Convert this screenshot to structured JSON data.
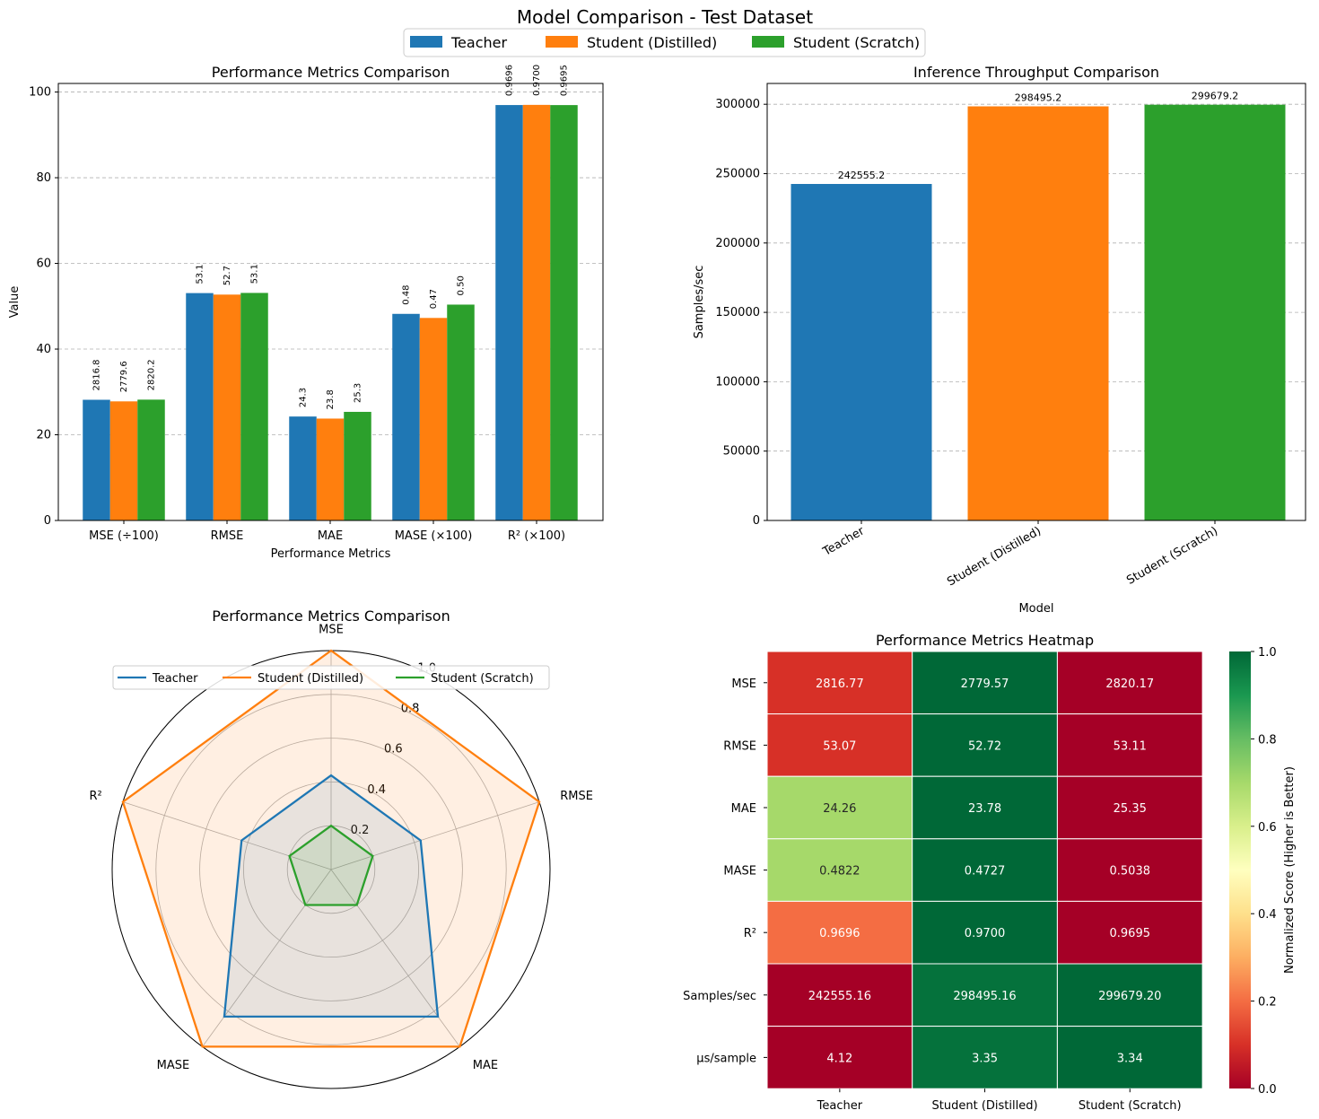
{
  "figure": {
    "title": "Model Comparison - Test Dataset",
    "legend": [
      "Teacher",
      "Student (Distilled)",
      "Student (Scratch)"
    ]
  },
  "colors": {
    "teacher": "#1f77b4",
    "distilled": "#ff7f0e",
    "scratch": "#2ca02c"
  },
  "chart_data": [
    {
      "type": "bar",
      "title": "Performance Metrics Comparison",
      "xlabel": "Performance Metrics",
      "ylabel": "Value",
      "categories": [
        "MSE (÷100)",
        "RMSE",
        "MAE",
        "MASE (×100)",
        "R² (×100)"
      ],
      "ylim": [
        0,
        102
      ],
      "yticks": [
        0,
        20,
        40,
        60,
        80,
        100
      ],
      "grid": "y",
      "series": [
        {
          "name": "Teacher",
          "values": [
            28.168,
            53.07,
            24.26,
            48.22,
            96.96
          ],
          "labels": [
            "2816.8",
            "53.1",
            "24.3",
            "0.48",
            "0.9696"
          ]
        },
        {
          "name": "Student (Distilled)",
          "values": [
            27.796,
            52.72,
            23.78,
            47.27,
            97.0
          ],
          "labels": [
            "2779.6",
            "52.7",
            "23.8",
            "0.47",
            "0.9700"
          ]
        },
        {
          "name": "Student (Scratch)",
          "values": [
            28.202,
            53.11,
            25.35,
            50.38,
            96.95
          ],
          "labels": [
            "2820.2",
            "53.1",
            "25.3",
            "0.50",
            "0.9695"
          ]
        }
      ]
    },
    {
      "type": "bar",
      "title": "Inference Throughput Comparison",
      "xlabel": "Model",
      "ylabel": "Samples/sec",
      "categories": [
        "Teacher",
        "Student (Distilled)",
        "Student (Scratch)"
      ],
      "values": [
        242555.2,
        298495.2,
        299679.2
      ],
      "labels": [
        "242555.2",
        "298495.2",
        "299679.2"
      ],
      "ylim": [
        0,
        315000
      ],
      "yticks": [
        0,
        50000,
        100000,
        150000,
        200000,
        250000,
        300000
      ],
      "grid": "y"
    },
    {
      "type": "radar",
      "title": "Performance Metrics Comparison",
      "axes": [
        "MSE",
        "RMSE",
        "MAE",
        "MASE",
        "R²"
      ],
      "rlim": [
        0,
        1.0
      ],
      "rticks": [
        "0.2",
        "0.4",
        "0.6",
        "0.8",
        "1.0"
      ],
      "legend_position": "top",
      "series": [
        {
          "name": "Teacher",
          "values": [
            0.43,
            0.43,
            0.83,
            0.83,
            0.43
          ]
        },
        {
          "name": "Student (Distilled)",
          "values": [
            1.0,
            1.0,
            1.0,
            1.0,
            1.0
          ]
        },
        {
          "name": "Student (Scratch)",
          "values": [
            0.2,
            0.2,
            0.2,
            0.2,
            0.2
          ]
        }
      ]
    },
    {
      "type": "heatmap",
      "title": "Performance Metrics Heatmap",
      "rows": [
        "MSE",
        "RMSE",
        "MAE",
        "MASE",
        "R²",
        "Samples/sec",
        "µs/sample"
      ],
      "cols": [
        "Teacher",
        "Student (Distilled)",
        "Student (Scratch)"
      ],
      "cells": [
        [
          "2816.77",
          "2779.57",
          "2820.17"
        ],
        [
          "53.07",
          "52.72",
          "53.11"
        ],
        [
          "24.26",
          "23.78",
          "25.35"
        ],
        [
          "0.4822",
          "0.4727",
          "0.5038"
        ],
        [
          "0.9696",
          "0.9700",
          "0.9695"
        ],
        [
          "242555.16",
          "298495.16",
          "299679.20"
        ],
        [
          "4.12",
          "3.35",
          "3.34"
        ]
      ],
      "scores": [
        [
          0.1,
          1.0,
          0.0
        ],
        [
          0.1,
          1.0,
          0.0
        ],
        [
          0.7,
          1.0,
          0.0
        ],
        [
          0.7,
          1.0,
          0.0
        ],
        [
          0.2,
          1.0,
          0.0
        ],
        [
          0.0,
          0.98,
          1.0
        ],
        [
          0.0,
          0.98,
          1.0
        ]
      ],
      "colorbar_label": "Normalized Score (Higher is Better)",
      "colorbar_ticks": [
        "0.0",
        "0.2",
        "0.4",
        "0.6",
        "0.8",
        "1.0"
      ]
    }
  ]
}
